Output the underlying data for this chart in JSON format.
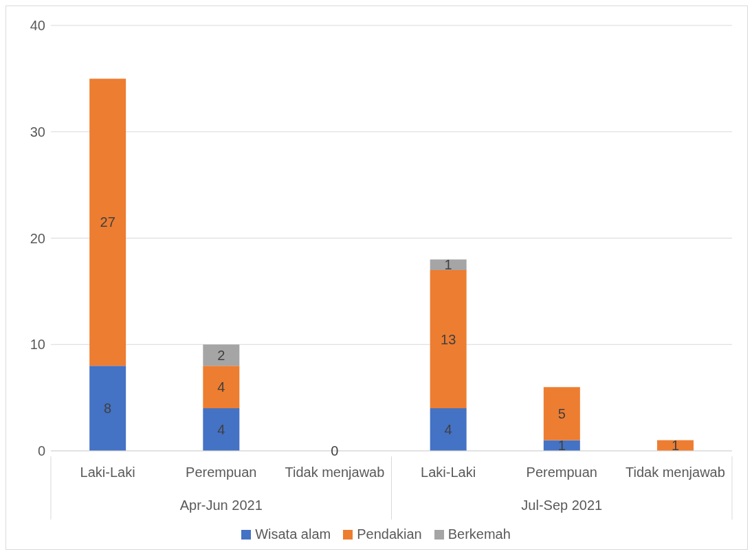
{
  "chart_data": {
    "type": "bar",
    "stacked": true,
    "categories": [
      "Laki-Laki",
      "Perempuan",
      "Tidak menjawab",
      "Laki-Laki",
      "Perempuan",
      "Tidak menjawab"
    ],
    "series": [
      {
        "name": "Wisata alam",
        "color": "#4472c4",
        "values": [
          8,
          4,
          0,
          4,
          1,
          0
        ],
        "value_labels": [
          "8",
          "4",
          "0",
          "4",
          "1",
          null
        ]
      },
      {
        "name": "Pendakian",
        "color": "#ed7d31",
        "values": [
          27,
          4,
          0,
          13,
          5,
          1
        ],
        "value_labels": [
          "27",
          "4",
          null,
          "13",
          "5",
          "1"
        ]
      },
      {
        "name": "Berkemah",
        "color": "#a5a5a5",
        "values": [
          0,
          2,
          0,
          1,
          0,
          0
        ],
        "value_labels": [
          null,
          "2",
          null,
          "1",
          null,
          null
        ]
      }
    ],
    "annotations": [
      "Apr-Jun 2021",
      "Jul-Sep 2021"
    ],
    "ylim": [
      0,
      40
    ],
    "yticks": [
      0,
      10,
      20,
      30,
      40
    ],
    "grid": "y",
    "legend": "bottom"
  }
}
